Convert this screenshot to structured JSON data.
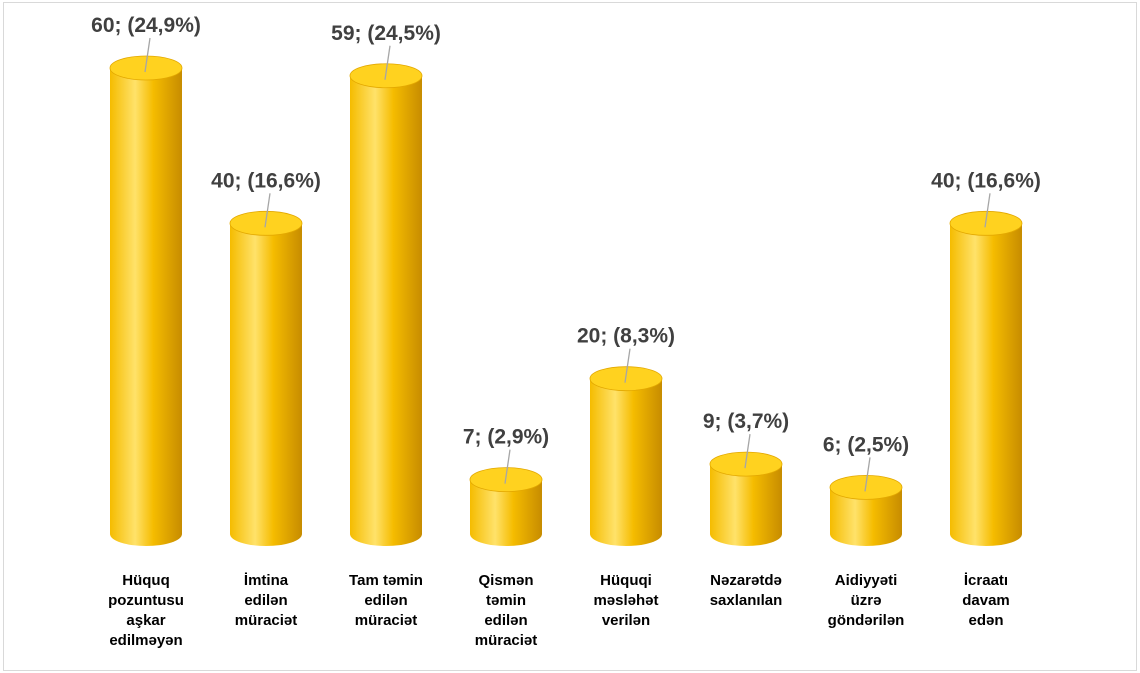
{
  "chart_data": {
    "type": "bar",
    "style": "3d-cylinder",
    "categories": [
      [
        "Hüquq",
        "pozuntusu",
        "aşkar",
        "edilməyən"
      ],
      [
        "İmtina",
        "edilən",
        "müraciət"
      ],
      [
        "Tam təmin",
        "edilən",
        "müraciət"
      ],
      [
        "Qismən",
        "təmin",
        "edilən",
        "müraciət"
      ],
      [
        "Hüquqi",
        "məsləhət",
        "verilən"
      ],
      [
        "Nəzarətdə",
        "saxlanılan"
      ],
      [
        "Aidiyyəti",
        "üzrə",
        "göndərilən"
      ],
      [
        "İcraatı",
        "davam",
        "edən"
      ]
    ],
    "values": [
      60,
      40,
      59,
      7,
      20,
      9,
      6,
      40
    ],
    "data_labels": [
      "60; (24,9%)",
      "40; (16,6%)",
      "59; (24,5%)",
      "7; (2,9%)",
      "20; (8,3%)",
      "9; (3,7%)",
      "6; (2,5%)",
      "40; (16,6%)"
    ],
    "ylim": [
      0,
      60
    ],
    "grid": false,
    "legend": "none",
    "colors": {
      "bar": "#f5bc00",
      "bar_light": "#ffe26a",
      "bar_dark": "#c78c00",
      "top": "#ffd21f",
      "data_label": "#404040",
      "leader_line": "#a6a6a6",
      "category_label": "#000000"
    }
  }
}
